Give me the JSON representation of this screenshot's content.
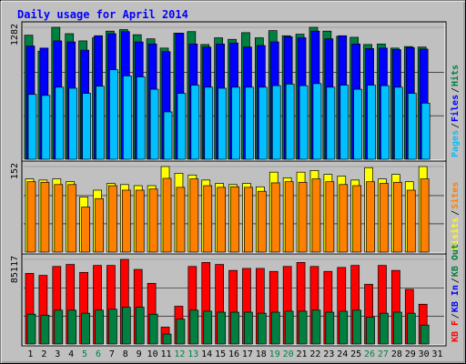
{
  "chart_data": [
    {
      "type": "bar",
      "title": "Daily usage for April 2014",
      "days": [
        "1",
        "2",
        "3",
        "4",
        "5",
        "6",
        "7",
        "8",
        "9",
        "10",
        "11",
        "12",
        "13",
        "14",
        "15",
        "16",
        "17",
        "18",
        "19",
        "20",
        "21",
        "22",
        "23",
        "24",
        "25",
        "26",
        "27",
        "28",
        "29",
        "30",
        "31"
      ],
      "weekend_days": [
        "5",
        "6",
        "12",
        "13",
        "19",
        "20",
        "26",
        "27"
      ],
      "ymax_label": "1282",
      "ymax": 1282,
      "legend": [
        "Pages",
        "Files",
        "Hits"
      ],
      "legend_colors": [
        "#00c0ff",
        "#0000ff",
        "#008040"
      ],
      "series": [
        {
          "name": "Hits",
          "color": "#008040",
          "values": [
            1205,
            1050,
            1282,
            1220,
            1150,
            1180,
            1245,
            1260,
            1210,
            1170,
            1080,
            1225,
            1240,
            1115,
            1180,
            1165,
            1230,
            1180,
            1250,
            1200,
            1215,
            1282,
            1245,
            1195,
            1185,
            1115,
            1120,
            1080,
            1095,
            1090,
            0
          ]
        },
        {
          "name": "Files",
          "color": "#0000ff",
          "values": [
            1100,
            1080,
            1150,
            1140,
            1060,
            1200,
            1220,
            1240,
            1140,
            1120,
            1045,
            1225,
            1120,
            1090,
            1120,
            1130,
            1090,
            1105,
            1140,
            1190,
            1180,
            1245,
            1170,
            1200,
            1120,
            1075,
            1080,
            1065,
            1085,
            1070,
            0
          ]
        },
        {
          "name": "Pages",
          "color": "#00c0ff",
          "values": [
            630,
            620,
            700,
            690,
            640,
            710,
            870,
            810,
            800,
            680,
            460,
            640,
            720,
            700,
            690,
            700,
            700,
            700,
            715,
            730,
            715,
            735,
            700,
            720,
            680,
            720,
            715,
            700,
            640,
            545,
            0
          ]
        }
      ]
    },
    {
      "type": "bar",
      "ymax_label": "152",
      "ymax": 152,
      "legend": [
        "Visits",
        "Sites"
      ],
      "legend_colors": [
        "#ffff00",
        "#ff8000"
      ],
      "series": [
        {
          "name": "Visits",
          "color": "#ffff00",
          "values": [
            130,
            128,
            130,
            125,
            98,
            110,
            122,
            120,
            118,
            118,
            152,
            140,
            137,
            128,
            122,
            120,
            122,
            116,
            142,
            132,
            142,
            145,
            138,
            135,
            128,
            150,
            130,
            138,
            125,
            152,
            0
          ]
        },
        {
          "name": "Sites",
          "color": "#ff8000",
          "values": [
            125,
            124,
            120,
            120,
            80,
            95,
            118,
            110,
            110,
            112,
            131,
            115,
            130,
            118,
            115,
            116,
            115,
            108,
            123,
            125,
            124,
            130,
            125,
            120,
            118,
            125,
            122,
            124,
            110,
            130,
            0
          ]
        }
      ]
    },
    {
      "type": "bar",
      "ymax_label": "85117",
      "ymax": 85117,
      "legend": [
        "KB F",
        "KB In",
        "KB Out"
      ],
      "legend_colors": [
        "#ff0000",
        "#0000ff",
        "#008040"
      ],
      "series": [
        {
          "name": "KB F",
          "color": "#ff0000",
          "values": [
            71000,
            69000,
            78000,
            80000,
            72000,
            79000,
            79000,
            85117,
            75000,
            61000,
            17000,
            38000,
            78000,
            82000,
            80000,
            74000,
            76000,
            76000,
            73000,
            78000,
            82000,
            78000,
            73000,
            77000,
            79000,
            60000,
            79000,
            74000,
            55000,
            40000,
            0
          ]
        },
        {
          "name": "KB Out",
          "color": "#008040",
          "values": [
            30000,
            29000,
            34000,
            34000,
            31000,
            34000,
            35000,
            37000,
            37000,
            30000,
            10000,
            25000,
            34000,
            33000,
            32000,
            32000,
            32000,
            31000,
            32000,
            33000,
            33000,
            34000,
            32000,
            33000,
            34000,
            27000,
            31000,
            32000,
            31000,
            19000,
            0
          ]
        }
      ]
    }
  ]
}
